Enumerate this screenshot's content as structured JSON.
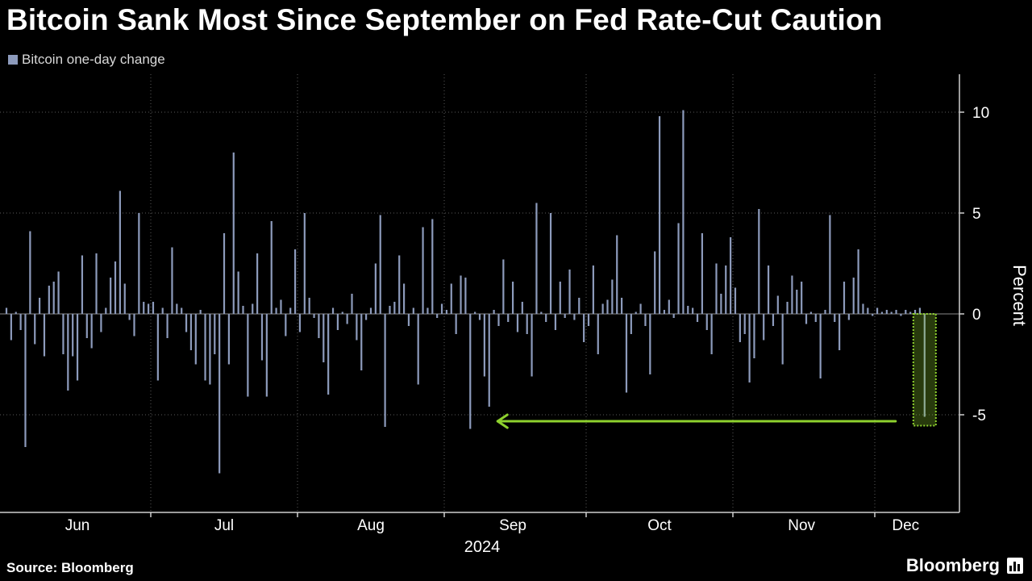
{
  "title": "Bitcoin Sank Most Since September on Fed Rate-Cut Caution",
  "source": "Source: Bloomberg",
  "brand": "Bloomberg",
  "colors": {
    "bar": "#8d9bbc",
    "highlight": "#8ed12e",
    "grid": "#5a5a5a",
    "background": "#000000"
  },
  "chart_data": {
    "type": "bar",
    "title": "Bitcoin Sank Most Since September on Fed Rate-Cut Caution",
    "ylabel": "Percent",
    "xlabel": "",
    "year_label": "2024",
    "legend": [
      "Bitcoin one-day change"
    ],
    "legend_position": "top-left",
    "ylim": [
      -9.8,
      11.8
    ],
    "yticks": [
      10,
      5,
      0,
      -5
    ],
    "grid": "dotted",
    "x_start": "2024-05-31",
    "x_end": "2024-12-11",
    "month_labels": [
      {
        "label": "Jun",
        "date": "2024-06-15"
      },
      {
        "label": "Jul",
        "date": "2024-07-16"
      },
      {
        "label": "Aug",
        "date": "2024-08-16"
      },
      {
        "label": "Sep",
        "date": "2024-09-15"
      },
      {
        "label": "Oct",
        "date": "2024-10-16"
      },
      {
        "label": "Nov",
        "date": "2024-11-15"
      },
      {
        "label": "Dec",
        "date": "2024-12-07"
      }
    ],
    "month_boundaries": [
      "2024-07-01",
      "2024-08-01",
      "2024-09-01",
      "2024-10-01",
      "2024-11-01",
      "2024-12-01"
    ],
    "highlight": {
      "date": "2024-12-11",
      "value": -5.1,
      "compare_to_date": "2024-09-06"
    },
    "series": [
      {
        "name": "Bitcoin one-day change",
        "values": [
          [
            "2024-05-31",
            0.3
          ],
          [
            "2024-06-01",
            -1.3
          ],
          [
            "2024-06-02",
            0.1
          ],
          [
            "2024-06-03",
            -0.8
          ],
          [
            "2024-06-04",
            -6.6
          ],
          [
            "2024-06-05",
            4.1
          ],
          [
            "2024-06-06",
            -1.5
          ],
          [
            "2024-06-07",
            0.8
          ],
          [
            "2024-06-08",
            -2.1
          ],
          [
            "2024-06-09",
            1.4
          ],
          [
            "2024-06-10",
            1.6
          ],
          [
            "2024-06-11",
            2.1
          ],
          [
            "2024-06-12",
            -2.0
          ],
          [
            "2024-06-13",
            -3.8
          ],
          [
            "2024-06-14",
            -2.1
          ],
          [
            "2024-06-15",
            -3.3
          ],
          [
            "2024-06-16",
            2.9
          ],
          [
            "2024-06-17",
            -1.2
          ],
          [
            "2024-06-18",
            -1.7
          ],
          [
            "2024-06-19",
            3.0
          ],
          [
            "2024-06-20",
            -0.9
          ],
          [
            "2024-06-21",
            0.3
          ],
          [
            "2024-06-22",
            1.8
          ],
          [
            "2024-06-23",
            2.6
          ],
          [
            "2024-06-24",
            6.1
          ],
          [
            "2024-06-25",
            1.5
          ],
          [
            "2024-06-26",
            -0.3
          ],
          [
            "2024-06-27",
            -1.1
          ],
          [
            "2024-06-28",
            5.0
          ],
          [
            "2024-06-29",
            0.6
          ],
          [
            "2024-06-30",
            0.5
          ],
          [
            "2024-07-01",
            0.6
          ],
          [
            "2024-07-02",
            -3.3
          ],
          [
            "2024-07-03",
            0.3
          ],
          [
            "2024-07-04",
            -1.2
          ],
          [
            "2024-07-05",
            3.3
          ],
          [
            "2024-07-06",
            0.5
          ],
          [
            "2024-07-07",
            0.3
          ],
          [
            "2024-07-08",
            -0.9
          ],
          [
            "2024-07-09",
            -1.8
          ],
          [
            "2024-07-10",
            -2.5
          ],
          [
            "2024-07-11",
            0.2
          ],
          [
            "2024-07-12",
            -3.3
          ],
          [
            "2024-07-13",
            -3.5
          ],
          [
            "2024-07-14",
            -2.0
          ],
          [
            "2024-07-15",
            -7.9
          ],
          [
            "2024-07-16",
            4.0
          ],
          [
            "2024-07-17",
            -2.5
          ],
          [
            "2024-07-18",
            8.0
          ],
          [
            "2024-07-19",
            2.1
          ],
          [
            "2024-07-20",
            0.4
          ],
          [
            "2024-07-21",
            -4.1
          ],
          [
            "2024-07-22",
            0.5
          ],
          [
            "2024-07-23",
            3.0
          ],
          [
            "2024-07-24",
            -2.3
          ],
          [
            "2024-07-25",
            -4.1
          ],
          [
            "2024-07-26",
            4.6
          ],
          [
            "2024-07-27",
            0.3
          ],
          [
            "2024-07-28",
            0.7
          ],
          [
            "2024-07-29",
            -1.1
          ],
          [
            "2024-07-30",
            0.3
          ],
          [
            "2024-07-31",
            3.2
          ],
          [
            "2024-08-01",
            -0.9
          ],
          [
            "2024-08-02",
            5.0
          ],
          [
            "2024-08-03",
            0.8
          ],
          [
            "2024-08-04",
            -0.2
          ],
          [
            "2024-08-05",
            -1.2
          ],
          [
            "2024-08-06",
            -2.4
          ],
          [
            "2024-08-07",
            -4.0
          ],
          [
            "2024-08-08",
            0.3
          ],
          [
            "2024-08-09",
            -0.8
          ],
          [
            "2024-08-10",
            0.1
          ],
          [
            "2024-08-11",
            -0.5
          ],
          [
            "2024-08-12",
            1.0
          ],
          [
            "2024-08-13",
            -1.3
          ],
          [
            "2024-08-14",
            -2.8
          ],
          [
            "2024-08-15",
            -0.3
          ],
          [
            "2024-08-16",
            0.3
          ],
          [
            "2024-08-17",
            2.5
          ],
          [
            "2024-08-18",
            4.9
          ],
          [
            "2024-08-19",
            -5.6
          ],
          [
            "2024-08-20",
            0.4
          ],
          [
            "2024-08-21",
            0.6
          ],
          [
            "2024-08-22",
            2.9
          ],
          [
            "2024-08-23",
            1.5
          ],
          [
            "2024-08-24",
            -0.6
          ],
          [
            "2024-08-25",
            0.3
          ],
          [
            "2024-08-26",
            -3.5
          ],
          [
            "2024-08-27",
            4.3
          ],
          [
            "2024-08-28",
            0.3
          ],
          [
            "2024-08-29",
            4.7
          ],
          [
            "2024-08-30",
            -0.2
          ],
          [
            "2024-08-31",
            0.5
          ],
          [
            "2024-09-01",
            0.2
          ],
          [
            "2024-09-02",
            1.5
          ],
          [
            "2024-09-03",
            -1.0
          ],
          [
            "2024-09-04",
            1.9
          ],
          [
            "2024-09-05",
            1.8
          ],
          [
            "2024-09-06",
            -5.7
          ],
          [
            "2024-09-07",
            0.1
          ],
          [
            "2024-09-08",
            -0.3
          ],
          [
            "2024-09-09",
            -3.1
          ],
          [
            "2024-09-10",
            -4.6
          ],
          [
            "2024-09-11",
            0.2
          ],
          [
            "2024-09-12",
            -0.6
          ],
          [
            "2024-09-13",
            2.7
          ],
          [
            "2024-09-14",
            -0.4
          ],
          [
            "2024-09-15",
            1.6
          ],
          [
            "2024-09-16",
            -0.9
          ],
          [
            "2024-09-17",
            0.6
          ],
          [
            "2024-09-18",
            -1.0
          ],
          [
            "2024-09-19",
            -3.1
          ],
          [
            "2024-09-20",
            5.5
          ],
          [
            "2024-09-21",
            0.1
          ],
          [
            "2024-09-22",
            -0.4
          ],
          [
            "2024-09-23",
            5.0
          ],
          [
            "2024-09-24",
            -0.8
          ],
          [
            "2024-09-25",
            1.6
          ],
          [
            "2024-09-26",
            -0.2
          ],
          [
            "2024-09-27",
            2.2
          ],
          [
            "2024-09-28",
            -0.3
          ],
          [
            "2024-09-29",
            0.8
          ],
          [
            "2024-09-30",
            -1.4
          ],
          [
            "2024-10-01",
            -0.6
          ],
          [
            "2024-10-02",
            2.4
          ],
          [
            "2024-10-03",
            -2.0
          ],
          [
            "2024-10-04",
            0.5
          ],
          [
            "2024-10-05",
            0.7
          ],
          [
            "2024-10-06",
            1.7
          ],
          [
            "2024-10-07",
            3.9
          ],
          [
            "2024-10-08",
            0.8
          ],
          [
            "2024-10-09",
            -3.9
          ],
          [
            "2024-10-10",
            -1.0
          ],
          [
            "2024-10-11",
            0.1
          ],
          [
            "2024-10-12",
            0.5
          ],
          [
            "2024-10-13",
            -0.6
          ],
          [
            "2024-10-14",
            -3.0
          ],
          [
            "2024-10-15",
            3.1
          ],
          [
            "2024-10-16",
            9.8
          ],
          [
            "2024-10-17",
            0.2
          ],
          [
            "2024-10-18",
            0.7
          ],
          [
            "2024-10-19",
            -0.2
          ],
          [
            "2024-10-20",
            4.5
          ],
          [
            "2024-10-21",
            10.1
          ],
          [
            "2024-10-22",
            0.4
          ],
          [
            "2024-10-23",
            0.3
          ],
          [
            "2024-10-24",
            -0.4
          ],
          [
            "2024-10-25",
            4.0
          ],
          [
            "2024-10-26",
            -0.8
          ],
          [
            "2024-10-27",
            -2.0
          ],
          [
            "2024-10-28",
            2.5
          ],
          [
            "2024-10-29",
            1.0
          ],
          [
            "2024-10-30",
            2.4
          ],
          [
            "2024-10-31",
            3.8
          ],
          [
            "2024-11-01",
            1.3
          ],
          [
            "2024-11-02",
            -1.4
          ],
          [
            "2024-11-03",
            -1.0
          ],
          [
            "2024-11-04",
            -3.4
          ],
          [
            "2024-11-05",
            -2.2
          ],
          [
            "2024-11-06",
            5.2
          ],
          [
            "2024-11-07",
            -1.3
          ],
          [
            "2024-11-08",
            2.4
          ],
          [
            "2024-11-09",
            -0.6
          ],
          [
            "2024-11-10",
            0.9
          ],
          [
            "2024-11-11",
            -2.5
          ],
          [
            "2024-11-12",
            0.6
          ],
          [
            "2024-11-13",
            1.9
          ],
          [
            "2024-11-14",
            1.2
          ],
          [
            "2024-11-15",
            1.6
          ],
          [
            "2024-11-16",
            -0.5
          ],
          [
            "2024-11-17",
            0.1
          ],
          [
            "2024-11-18",
            -0.4
          ],
          [
            "2024-11-19",
            -3.2
          ],
          [
            "2024-11-20",
            0.2
          ],
          [
            "2024-11-21",
            4.9
          ],
          [
            "2024-11-22",
            -0.4
          ],
          [
            "2024-11-23",
            -1.8
          ],
          [
            "2024-11-24",
            1.6
          ],
          [
            "2024-11-25",
            -0.3
          ],
          [
            "2024-11-26",
            1.8
          ],
          [
            "2024-11-27",
            3.2
          ],
          [
            "2024-11-28",
            0.5
          ],
          [
            "2024-11-29",
            0.3
          ],
          [
            "2024-11-30",
            -0.1
          ],
          [
            "2024-12-01",
            0.3
          ],
          [
            "2024-12-02",
            0.1
          ],
          [
            "2024-12-03",
            0.2
          ],
          [
            "2024-12-04",
            0.1
          ],
          [
            "2024-12-05",
            0.2
          ],
          [
            "2024-12-06",
            -0.1
          ],
          [
            "2024-12-07",
            0.2
          ],
          [
            "2024-12-08",
            0.1
          ],
          [
            "2024-12-09",
            0.2
          ],
          [
            "2024-12-10",
            0.3
          ],
          [
            "2024-12-11",
            -5.1
          ]
        ]
      }
    ]
  }
}
